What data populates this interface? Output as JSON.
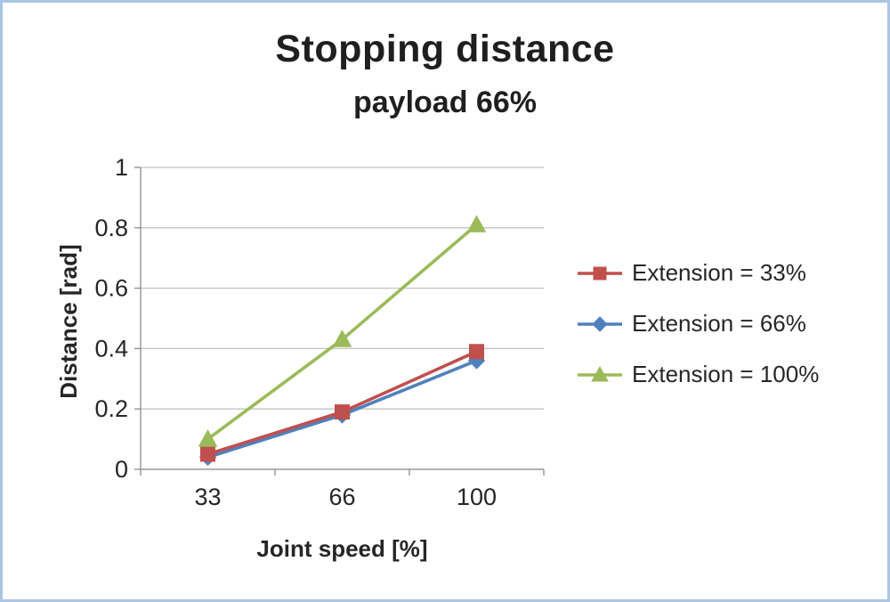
{
  "chart_data": {
    "type": "line",
    "title": "Stopping distance",
    "subtitle": "payload 66%",
    "xlabel": "Joint speed [%]",
    "ylabel": "Distance [rad]",
    "categories": [
      "33",
      "66",
      "100"
    ],
    "ylim": [
      0,
      1
    ],
    "yticks": [
      0,
      0.2,
      0.4,
      0.6,
      0.8,
      1
    ],
    "grid": true,
    "legend_position": "right",
    "series": [
      {
        "name": "Extension = 33%",
        "marker": "square",
        "color": "#C0504D",
        "values": [
          0.05,
          0.19,
          0.39
        ]
      },
      {
        "name": "Extension = 66%",
        "marker": "diamond",
        "color": "#4F81BD",
        "values": [
          0.04,
          0.18,
          0.36
        ]
      },
      {
        "name": "Extension = 100%",
        "marker": "triangle",
        "color": "#9BBB59",
        "values": [
          0.1,
          0.43,
          0.81
        ]
      }
    ]
  },
  "colors": {
    "frame_border": "#a9c6e2",
    "grid": "#c3c3c3",
    "axis": "#8c8c8c",
    "text": "#262626",
    "title": "#1f1f1f"
  }
}
